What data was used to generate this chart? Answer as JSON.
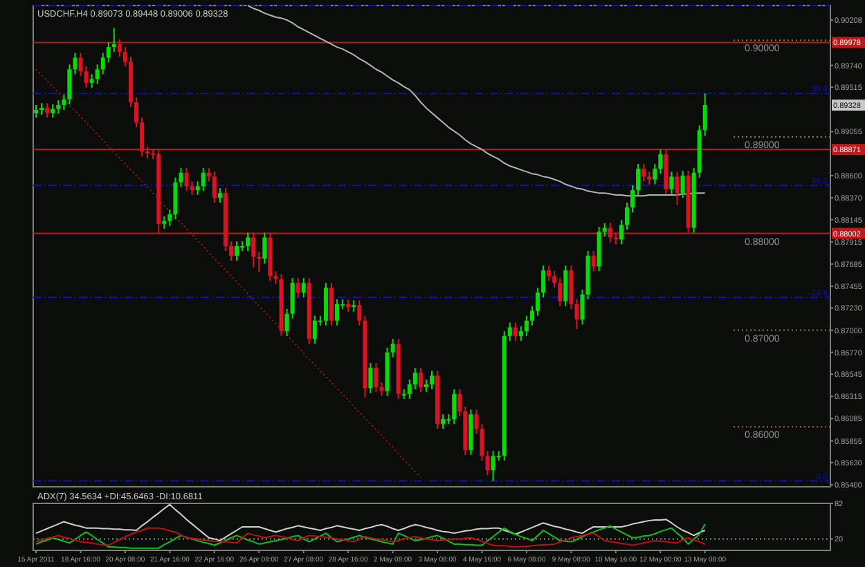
{
  "chart_data": [
    {
      "type": "candlestick",
      "title": "USDCHF,H4  0.89073 0.89448 0.89006 0.89328",
      "tick_labels": "y",
      "categories": [
        null,
        null,
        null,
        null,
        null,
        null,
        null,
        null,
        null,
        null,
        null,
        null,
        null,
        null,
        null,
        null,
        null,
        null,
        null,
        null,
        null,
        null,
        null,
        null,
        null,
        null,
        null,
        null,
        null,
        null,
        null,
        null,
        null,
        null,
        null,
        null,
        null,
        null,
        null,
        null,
        null,
        null,
        null,
        null,
        null,
        null,
        null,
        null,
        null,
        null,
        null,
        null,
        null,
        null,
        null,
        null,
        null,
        null,
        null,
        null,
        null,
        null,
        null,
        null,
        null,
        null,
        null,
        null,
        null,
        null,
        null,
        null,
        null,
        null,
        null,
        null,
        null,
        null,
        null,
        null,
        null,
        null,
        null,
        null,
        null,
        null,
        null,
        null,
        null,
        null,
        null,
        null,
        null,
        null,
        null,
        null,
        null,
        null,
        null,
        null,
        null,
        null,
        null,
        null,
        null,
        null,
        null,
        null,
        null,
        null,
        null,
        null,
        null,
        null,
        null,
        null,
        null,
        null,
        null,
        null,
        null
      ],
      "ylim": [
        0.8538,
        0.9036
      ],
      "yticks": [
        {
          "value": 0.854,
          "label": "0.85400"
        },
        {
          "value": 0.8563,
          "label": "0.85630"
        },
        {
          "value": 0.85855,
          "label": "0.85855"
        },
        {
          "value": 0.86085,
          "label": "0.86085"
        },
        {
          "value": 0.86315,
          "label": "0.86315"
        },
        {
          "value": 0.86545,
          "label": "0.86545"
        },
        {
          "value": 0.8677,
          "label": "0.86770"
        },
        {
          "value": 0.87,
          "label": "0.87000"
        },
        {
          "value": 0.8723,
          "label": "0.87230"
        },
        {
          "value": 0.87455,
          "label": "0.87455"
        },
        {
          "value": 0.87685,
          "label": "0.87685"
        },
        {
          "value": 0.87915,
          "label": "0.87915"
        },
        {
          "value": 0.88145,
          "label": "0.88145"
        },
        {
          "value": 0.8837,
          "label": "0.88370"
        },
        {
          "value": 0.886,
          "label": "0.88600"
        },
        {
          "value": 0.89055,
          "label": "0.89055"
        },
        {
          "value": 0.89515,
          "label": "0.89515"
        },
        {
          "value": 0.8974,
          "label": "0.89740"
        },
        {
          "value": 0.90208,
          "label": "0.90208"
        }
      ],
      "ohlc": [
        [
          0.8925,
          0.8933,
          0.892,
          0.8928
        ],
        [
          0.8928,
          0.8935,
          0.8923,
          0.893
        ],
        [
          0.893,
          0.8935,
          0.892,
          0.8925
        ],
        [
          0.8925,
          0.8934,
          0.892,
          0.8929
        ],
        [
          0.8929,
          0.8938,
          0.8924,
          0.8933
        ],
        [
          0.8933,
          0.8944,
          0.8928,
          0.8939
        ],
        [
          0.8939,
          0.8975,
          0.8934,
          0.897
        ],
        [
          0.897,
          0.8987,
          0.8965,
          0.8982
        ],
        [
          0.8982,
          0.8987,
          0.8963,
          0.8968
        ],
        [
          0.8968,
          0.8973,
          0.8951,
          0.8956
        ],
        [
          0.8956,
          0.8965,
          0.8951,
          0.896
        ],
        [
          0.896,
          0.8975,
          0.8955,
          0.897
        ],
        [
          0.897,
          0.8987,
          0.8965,
          0.8982
        ],
        [
          0.8982,
          0.8998,
          0.8977,
          0.8993
        ],
        [
          0.8993,
          0.9013,
          0.8988,
          0.8996
        ],
        [
          0.8996,
          0.9001,
          0.8983,
          0.8988
        ],
        [
          0.8988,
          0.8993,
          0.8973,
          0.8978
        ],
        [
          0.8978,
          0.8983,
          0.8931,
          0.8936
        ],
        [
          0.8936,
          0.8941,
          0.891,
          0.8915
        ],
        [
          0.8915,
          0.892,
          0.888,
          0.8885
        ],
        [
          0.8885,
          0.889,
          0.8878,
          0.8883
        ],
        [
          0.8883,
          0.8888,
          0.8877,
          0.8882
        ],
        [
          0.8882,
          0.8887,
          0.88,
          0.881
        ],
        [
          0.881,
          0.8818,
          0.8805,
          0.8813
        ],
        [
          0.8813,
          0.8825,
          0.8808,
          0.882
        ],
        [
          0.882,
          0.8858,
          0.8815,
          0.8853
        ],
        [
          0.8853,
          0.8868,
          0.8848,
          0.8863
        ],
        [
          0.8863,
          0.8868,
          0.8844,
          0.8849
        ],
        [
          0.8849,
          0.8854,
          0.884,
          0.8845
        ],
        [
          0.8845,
          0.8854,
          0.884,
          0.8849
        ],
        [
          0.8849,
          0.8868,
          0.8844,
          0.8863
        ],
        [
          0.8863,
          0.8868,
          0.8854,
          0.8859
        ],
        [
          0.8859,
          0.8864,
          0.8832,
          0.8837
        ],
        [
          0.8837,
          0.8847,
          0.8832,
          0.8842
        ],
        [
          0.8842,
          0.8847,
          0.8782,
          0.8787
        ],
        [
          0.8787,
          0.8792,
          0.8772,
          0.8777
        ],
        [
          0.8777,
          0.8792,
          0.8772,
          0.8787
        ],
        [
          0.8787,
          0.8792,
          0.8782,
          0.8787
        ],
        [
          0.8787,
          0.8801,
          0.8782,
          0.8796
        ],
        [
          0.8796,
          0.8801,
          0.8765,
          0.8776
        ],
        [
          0.8776,
          0.8781,
          0.876,
          0.8774
        ],
        [
          0.8774,
          0.8801,
          0.8769,
          0.8796
        ],
        [
          0.8796,
          0.8801,
          0.8751,
          0.8756
        ],
        [
          0.8756,
          0.8761,
          0.8748,
          0.8753
        ],
        [
          0.8753,
          0.8758,
          0.8694,
          0.8699
        ],
        [
          0.8699,
          0.8722,
          0.8694,
          0.8717
        ],
        [
          0.8717,
          0.8754,
          0.8712,
          0.8749
        ],
        [
          0.8749,
          0.8754,
          0.8734,
          0.8739
        ],
        [
          0.8739,
          0.8754,
          0.8734,
          0.8749
        ],
        [
          0.8749,
          0.8754,
          0.8686,
          0.8691
        ],
        [
          0.8691,
          0.8715,
          0.8686,
          0.871
        ],
        [
          0.871,
          0.8715,
          0.8705,
          0.871
        ],
        [
          0.871,
          0.8749,
          0.8705,
          0.8744
        ],
        [
          0.8744,
          0.8749,
          0.8705,
          0.871
        ],
        [
          0.871,
          0.8732,
          0.8705,
          0.8727
        ],
        [
          0.8727,
          0.8732,
          0.8722,
          0.8727
        ],
        [
          0.8727,
          0.8732,
          0.8719,
          0.8724
        ],
        [
          0.8724,
          0.8731,
          0.8719,
          0.8726
        ],
        [
          0.8726,
          0.8731,
          0.8705,
          0.871
        ],
        [
          0.871,
          0.8715,
          0.863,
          0.864
        ],
        [
          0.864,
          0.8666,
          0.8635,
          0.8661
        ],
        [
          0.8661,
          0.8666,
          0.8636,
          0.8641
        ],
        [
          0.8641,
          0.8646,
          0.8632,
          0.8637
        ],
        [
          0.8637,
          0.8682,
          0.8632,
          0.8677
        ],
        [
          0.8677,
          0.8691,
          0.8672,
          0.8686
        ],
        [
          0.8686,
          0.8691,
          0.8629,
          0.8634
        ],
        [
          0.8634,
          0.8639,
          0.8629,
          0.8634
        ],
        [
          0.8634,
          0.8649,
          0.8629,
          0.8644
        ],
        [
          0.8644,
          0.8661,
          0.8639,
          0.8656
        ],
        [
          0.8656,
          0.8661,
          0.8636,
          0.8641
        ],
        [
          0.8641,
          0.8649,
          0.8636,
          0.8644
        ],
        [
          0.8644,
          0.8658,
          0.8639,
          0.8653
        ],
        [
          0.8653,
          0.8658,
          0.8598,
          0.8603
        ],
        [
          0.8603,
          0.8613,
          0.8598,
          0.8608
        ],
        [
          0.8608,
          0.8613,
          0.8603,
          0.8608
        ],
        [
          0.8608,
          0.8639,
          0.8603,
          0.8634
        ],
        [
          0.8634,
          0.8639,
          0.8611,
          0.8616
        ],
        [
          0.8616,
          0.8621,
          0.8571,
          0.8576
        ],
        [
          0.8576,
          0.8618,
          0.8571,
          0.8613
        ],
        [
          0.8613,
          0.8618,
          0.8593,
          0.8598
        ],
        [
          0.8598,
          0.8603,
          0.8565,
          0.857
        ],
        [
          0.857,
          0.8575,
          0.855,
          0.8555
        ],
        [
          0.8555,
          0.8575,
          0.8544,
          0.857
        ],
        [
          0.857,
          0.8575,
          0.8565,
          0.857
        ],
        [
          0.857,
          0.8699,
          0.8565,
          0.8694
        ],
        [
          0.8694,
          0.8708,
          0.8689,
          0.8703
        ],
        [
          0.8703,
          0.8708,
          0.8689,
          0.8694
        ],
        [
          0.8694,
          0.8704,
          0.8689,
          0.8699
        ],
        [
          0.8699,
          0.8715,
          0.8694,
          0.871
        ],
        [
          0.871,
          0.8725,
          0.8705,
          0.872
        ],
        [
          0.872,
          0.8744,
          0.8715,
          0.8739
        ],
        [
          0.8739,
          0.8767,
          0.8734,
          0.8762
        ],
        [
          0.8762,
          0.8767,
          0.8751,
          0.8756
        ],
        [
          0.8756,
          0.8761,
          0.8744,
          0.8749
        ],
        [
          0.8749,
          0.8754,
          0.8725,
          0.873
        ],
        [
          0.873,
          0.8767,
          0.8725,
          0.8762
        ],
        [
          0.8762,
          0.8767,
          0.8722,
          0.8727
        ],
        [
          0.8727,
          0.8732,
          0.8701,
          0.8711
        ],
        [
          0.8711,
          0.8742,
          0.8706,
          0.8737
        ],
        [
          0.8737,
          0.8782,
          0.8732,
          0.8777
        ],
        [
          0.8777,
          0.8782,
          0.8761,
          0.8766
        ],
        [
          0.8766,
          0.8807,
          0.8761,
          0.8802
        ],
        [
          0.8802,
          0.8811,
          0.8797,
          0.8806
        ],
        [
          0.8806,
          0.8811,
          0.8791,
          0.8796
        ],
        [
          0.8796,
          0.8801,
          0.8789,
          0.8794
        ],
        [
          0.8794,
          0.8814,
          0.8789,
          0.8809
        ],
        [
          0.8809,
          0.8832,
          0.8804,
          0.8827
        ],
        [
          0.8827,
          0.885,
          0.8822,
          0.8845
        ],
        [
          0.8845,
          0.8872,
          0.884,
          0.8867
        ],
        [
          0.8867,
          0.8872,
          0.8854,
          0.8859
        ],
        [
          0.8859,
          0.8864,
          0.8851,
          0.8856
        ],
        [
          0.8856,
          0.8872,
          0.8851,
          0.8867
        ],
        [
          0.8867,
          0.8887,
          0.8862,
          0.8882
        ],
        [
          0.8882,
          0.8887,
          0.8841,
          0.8846
        ],
        [
          0.8846,
          0.8864,
          0.8841,
          0.8859
        ],
        [
          0.8859,
          0.8864,
          0.883,
          0.8842
        ],
        [
          0.8842,
          0.8865,
          0.8837,
          0.886
        ],
        [
          0.886,
          0.8865,
          0.8801,
          0.8806
        ],
        [
          0.8806,
          0.8868,
          0.8801,
          0.8863
        ],
        [
          0.8863,
          0.8912,
          0.8858,
          0.8907
        ],
        [
          0.8907,
          0.8945,
          0.8901,
          0.8933
        ]
      ],
      "series": [
        {
          "type": "line",
          "color": "#b4b4b4",
          "line_style": "solid",
          "values": [
            null,
            null,
            null,
            null,
            null,
            null,
            null,
            null,
            null,
            null,
            null,
            null,
            null,
            null,
            null,
            null,
            null,
            null,
            null,
            null,
            null,
            null,
            null,
            null,
            null,
            null,
            null,
            null,
            null,
            null,
            null,
            null,
            null,
            null,
            null,
            null,
            null,
            null,
            0.9036,
            0.9033,
            0.9031,
            0.9028,
            0.9026,
            0.9024,
            0.9023,
            0.9021,
            0.9018,
            0.9014,
            0.9011,
            0.9008,
            0.9005,
            0.9002,
            0.8999,
            0.8996,
            0.8993,
            0.8991,
            0.8988,
            0.8985,
            0.8981,
            0.8978,
            0.8974,
            0.897,
            0.8967,
            0.8963,
            0.8959,
            0.8956,
            0.8952,
            0.8949,
            0.8943,
            0.8936,
            0.893,
            0.8925,
            0.892,
            0.8915,
            0.891,
            0.8906,
            0.8902,
            0.8897,
            0.8893,
            0.889,
            0.8887,
            0.8883,
            0.888,
            0.8877,
            0.8873,
            0.887,
            0.8868,
            0.8866,
            0.8864,
            0.8862,
            0.8861,
            0.8859,
            0.8858,
            0.8856,
            0.8854,
            0.8851,
            0.8849,
            0.8847,
            0.8846,
            0.8844,
            0.8843,
            0.8842,
            0.8842,
            0.8841,
            0.884,
            0.884,
            0.8839,
            0.8839,
            0.8839,
            0.8839,
            0.884,
            0.884,
            0.884,
            0.884,
            0.884,
            0.884,
            0.8841,
            0.8841,
            0.8842,
            0.8842,
            0.8842
          ]
        },
        {
          "type": "line",
          "color": "#b01010",
          "line_style": "dotted",
          "values": [
            0.897,
            0.8964,
            0.8958,
            0.8952,
            0.8946,
            0.8939,
            0.8933,
            0.8927,
            0.8921,
            0.8915,
            0.8909,
            0.8903,
            0.8897,
            0.889,
            0.8884,
            0.8878,
            0.8872,
            0.8866,
            0.886,
            0.8854,
            0.8848,
            0.8842,
            0.8835,
            0.8829,
            0.8823,
            0.8817,
            0.8811,
            0.8805,
            0.8799,
            0.8793,
            0.8787,
            0.878,
            0.8774,
            0.8768,
            0.8762,
            0.8756,
            0.875,
            0.8744,
            0.8738,
            0.8731,
            0.8725,
            0.8719,
            0.8713,
            0.8707,
            0.8701,
            0.8695,
            0.8689,
            0.8683,
            0.8676,
            0.867,
            0.8664,
            0.8658,
            0.8652,
            0.8646,
            0.864,
            0.8634,
            0.8628,
            0.8621,
            0.8615,
            0.8609,
            0.8603,
            0.8597,
            0.8591,
            0.8585,
            0.8579,
            0.8572,
            0.8566,
            0.856,
            0.8554,
            0.8548,
            null,
            null,
            null,
            null,
            null,
            null,
            null,
            null,
            null,
            null,
            null,
            null,
            null,
            null,
            null,
            null,
            null,
            null,
            null,
            null,
            null,
            null,
            null,
            null,
            null,
            null,
            null,
            null,
            null,
            null,
            null,
            null,
            null,
            null,
            null,
            null,
            null,
            null,
            null,
            null,
            null,
            null,
            null,
            null,
            null,
            null,
            null,
            null,
            null,
            null,
            null
          ]
        }
      ],
      "ref_lines": [
        {
          "axis": "y",
          "value": 0.9036,
          "color": "#1010b0",
          "line_style": "dashed"
        },
        {
          "axis": "y",
          "value": 0.8945,
          "color": "#1010b0",
          "line_style": "dashed"
        },
        {
          "axis": "y",
          "value": 0.885,
          "color": "#1010b0",
          "line_style": "dashed"
        },
        {
          "axis": "y",
          "value": 0.8734,
          "color": "#1010b0",
          "line_style": "dashed"
        },
        {
          "axis": "y",
          "value": 0.8544,
          "color": "#1010b0",
          "line_style": "dashed"
        },
        {
          "axis": "y",
          "value": 0.9,
          "label": "0.90000",
          "color": "#b07010",
          "line_style": "dotted"
        },
        {
          "axis": "y",
          "value": 0.89,
          "label": "0.89000",
          "color": "#b07010",
          "line_style": "dotted"
        },
        {
          "axis": "y",
          "value": 0.87,
          "label": "0.87000",
          "color": "#b07010",
          "line_style": "dotted"
        },
        {
          "axis": "y",
          "value": 0.86,
          "label": "0.86000",
          "color": "#b07010",
          "line_style": "dotted"
        },
        {
          "axis": "y",
          "value": 0.89978,
          "label": "0.89978",
          "color": "#c01818",
          "line_style": "solid"
        },
        {
          "axis": "y",
          "value": 0.88871,
          "label": "0.88871",
          "color": "#c01818",
          "line_style": "solid"
        },
        {
          "axis": "y",
          "value": 0.88002,
          "label": "0.88002",
          "color": "#c01818",
          "line_style": "solid"
        }
      ],
      "annotations": [
        {
          "text": "50.0",
          "y": 0.8945
        },
        {
          "text": "38.2",
          "y": 0.885
        },
        {
          "text": "23.6",
          "y": 0.8734
        },
        {
          "text": "0.0",
          "y": 0.8544
        },
        {
          "text": "0.88000",
          "y": 0.88002
        },
        "0.89328"
      ]
    },
    {
      "type": "line",
      "title": "ADX(7) 34.5634 +DI:45.6463 -DI:10.6811",
      "ylim": [
        0,
        82
      ],
      "yticks": [
        20,
        82
      ],
      "categories": [
        "15 Apr 2011",
        null,
        null,
        null,
        null,
        null,
        null,
        null,
        "18 Apr 16:00",
        null,
        null,
        null,
        null,
        null,
        null,
        null,
        "20 Apr 08:00",
        null,
        null,
        null,
        null,
        null,
        null,
        null,
        "21 Apr 16:00",
        null,
        null,
        null,
        null,
        null,
        null,
        null,
        "22 Apr 16:00",
        null,
        null,
        null,
        null,
        null,
        null,
        null,
        "26 Apr 08:00",
        null,
        null,
        null,
        null,
        null,
        null,
        null,
        "27 Apr 08:00",
        null,
        null,
        null,
        null,
        null,
        null,
        null,
        "28 Apr 16:00",
        null,
        null,
        null,
        null,
        null,
        null,
        null,
        "2 May 08:00",
        null,
        null,
        null,
        null,
        null,
        null,
        null,
        "3 May 08:00",
        null,
        null,
        null,
        null,
        null,
        null,
        null,
        "4 May 16:00",
        null,
        null,
        null,
        null,
        null,
        null,
        null,
        "6 May 08:00",
        null,
        null,
        null,
        null,
        null,
        null,
        null,
        "9 May 08:00",
        null,
        null,
        null,
        null,
        null,
        null,
        null,
        "10 May 16:00",
        null,
        null,
        null,
        null,
        null,
        null,
        null,
        "12 May 00:00",
        null,
        null,
        null,
        null,
        null,
        null,
        null,
        "13 May 08:00"
      ],
      "series": [
        {
          "color": "#d0d0d0",
          "values": [
            30,
            34,
            38,
            42,
            46,
            50,
            47,
            44,
            42,
            39,
            39,
            39,
            38,
            38,
            37,
            37,
            36,
            36,
            35,
            43,
            50,
            58,
            65,
            73,
            80,
            71,
            63,
            54,
            46,
            38,
            30,
            22,
            20,
            17,
            23,
            29,
            35,
            41,
            41,
            41,
            41,
            38,
            35,
            32,
            35,
            38,
            40,
            43,
            41,
            39,
            37,
            35,
            38,
            40,
            43,
            41,
            39,
            37,
            35,
            38,
            40,
            43,
            45,
            42,
            38,
            35,
            38,
            42,
            45,
            43,
            40,
            38,
            35,
            33,
            32,
            30,
            32,
            34,
            35,
            37,
            38,
            38,
            39,
            39,
            35,
            32,
            28,
            32,
            36,
            40,
            44,
            48,
            45,
            42,
            40,
            37,
            35,
            32,
            30,
            36,
            41,
            41,
            41,
            41,
            41,
            41,
            43,
            46,
            48,
            50,
            52,
            53,
            53,
            54,
            48,
            41,
            35,
            31,
            26,
            31,
            35
          ]
        },
        {
          "color": "#10c010",
          "values": [
            11,
            15,
            18,
            22,
            19,
            16,
            13,
            19,
            26,
            32,
            26,
            19,
            13,
            6,
            6,
            5,
            5,
            4,
            4,
            4,
            4,
            4,
            4,
            10,
            15,
            21,
            26,
            23,
            20,
            17,
            14,
            12,
            9,
            13,
            17,
            22,
            26,
            22,
            18,
            15,
            11,
            13,
            15,
            17,
            19,
            21,
            24,
            26,
            20,
            15,
            20,
            25,
            30,
            22,
            15,
            18,
            20,
            23,
            26,
            23,
            20,
            18,
            15,
            13,
            11,
            30,
            26,
            21,
            17,
            19,
            21,
            24,
            26,
            21,
            16,
            11,
            11,
            10,
            10,
            9,
            9,
            17,
            24,
            32,
            39,
            33,
            28,
            24,
            21,
            17,
            26,
            35,
            29,
            23,
            17,
            16,
            15,
            19,
            24,
            28,
            32,
            36,
            39,
            43,
            37,
            32,
            27,
            22,
            23,
            25,
            26,
            29,
            33,
            36,
            39,
            30,
            22,
            11,
            20,
            28,
            46
          ]
        },
        {
          "color": "#c01010",
          "values": [
            15,
            18,
            21,
            23,
            26,
            23,
            21,
            18,
            15,
            14,
            13,
            11,
            10,
            9,
            14,
            19,
            24,
            28,
            32,
            35,
            39,
            39,
            39,
            37,
            34,
            32,
            27,
            22,
            21,
            20,
            18,
            17,
            16,
            15,
            15,
            14,
            13,
            22,
            30,
            27,
            25,
            22,
            24,
            26,
            24,
            22,
            19,
            17,
            22,
            26,
            25,
            24,
            23,
            22,
            20,
            19,
            17,
            15,
            20,
            24,
            22,
            20,
            19,
            17,
            15,
            17,
            20,
            22,
            24,
            22,
            20,
            19,
            17,
            18,
            19,
            20,
            20,
            21,
            22,
            19,
            16,
            12,
            9,
            8,
            8,
            7,
            6,
            7,
            7,
            8,
            9,
            10,
            10,
            11,
            15,
            18,
            22,
            24,
            26,
            28,
            30,
            24,
            17,
            15,
            14,
            12,
            11,
            9,
            11,
            13,
            15,
            17,
            16,
            15,
            14,
            13,
            18,
            22,
            18,
            15,
            11
          ]
        }
      ],
      "ref_lines": [
        {
          "axis": "y",
          "value": 20,
          "color": "#909090",
          "line_style": "dotted"
        }
      ]
    }
  ]
}
